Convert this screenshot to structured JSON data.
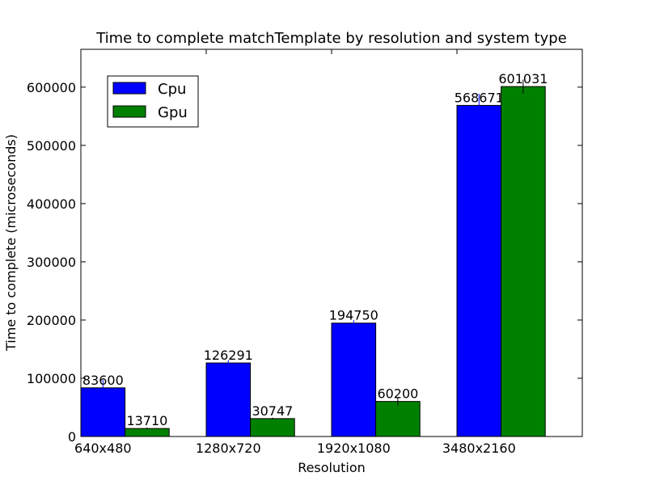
{
  "chart_data": {
    "type": "bar",
    "title": "Time to complete matchTemplate by resolution and system type",
    "xlabel": "Resolution",
    "ylabel": "Time to complete (microseconds)",
    "categories": [
      "640x480",
      "1280x720",
      "1920x1080",
      "3480x2160"
    ],
    "series": [
      {
        "name": "Cpu",
        "color": "#0000ff",
        "values": [
          83600,
          126291,
          194750,
          568671
        ],
        "errors": [
          14000,
          5000,
          5000,
          20000
        ]
      },
      {
        "name": "Gpu",
        "color": "#008000",
        "values": [
          13710,
          30747,
          60200,
          601031
        ],
        "errors": [
          1500,
          1500,
          7000,
          12000
        ]
      }
    ],
    "ylim": [
      0,
      665000
    ],
    "yticks": [
      0,
      100000,
      200000,
      300000,
      400000,
      500000,
      600000
    ],
    "ytick_labels": [
      "0",
      "100000",
      "200000",
      "300000",
      "400000",
      "500000",
      "600000"
    ],
    "legend_position": "upper-left",
    "grid": false
  }
}
